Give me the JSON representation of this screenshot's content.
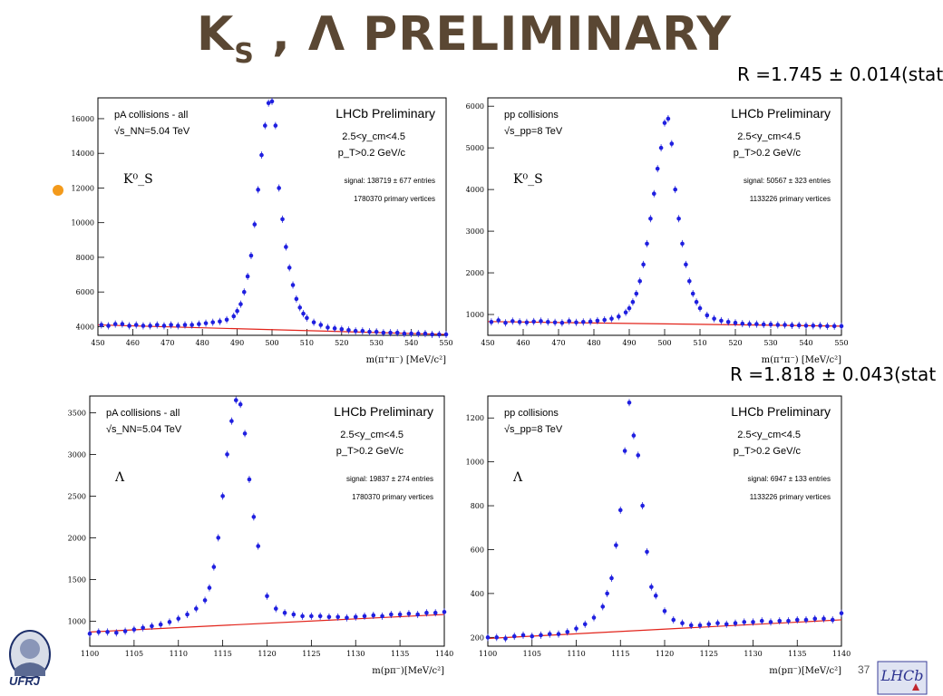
{
  "slide": {
    "title_main": "K",
    "title_sub": "S",
    "title_rest": " , Λ PRELIMINARY",
    "ratio_top": "R =1.745 ± 0.014(stat",
    "ratio_bottom": "R =1.818 ± 0.043(stat",
    "page_number": "37",
    "logo_left_text": "UFRJ",
    "logo_right_text": "LHCb"
  },
  "chart_data": [
    {
      "type": "scatter",
      "collision": "pA collisions - all",
      "energy": "√s_NN=5.04 TeV",
      "brand": "LHCb Preliminary",
      "rapidity": "2.5<y_cm<4.5",
      "pt_cut": "p_T>0.2 GeV/c",
      "signal": "signal: 138719 ± 677 entries",
      "vertices": "1780370 primary vertices",
      "particle": "K⁰_S",
      "xlabel": "m(π⁺π⁻) [MeV/c²]",
      "xlim": [
        450,
        550
      ],
      "ylim": [
        3500,
        17200
      ],
      "xticks": [
        450,
        460,
        470,
        480,
        490,
        500,
        510,
        520,
        530,
        540,
        550
      ],
      "yticks": [
        4000,
        6000,
        8000,
        10000,
        12000,
        14000,
        16000
      ],
      "fit_line": [
        [
          450,
          4100
        ],
        [
          550,
          3550
        ]
      ],
      "x": [
        451,
        453,
        455,
        457,
        459,
        461,
        463,
        465,
        467,
        469,
        471,
        473,
        475,
        477,
        479,
        481,
        483,
        485,
        487,
        489,
        490,
        491,
        492,
        493,
        494,
        495,
        496,
        497,
        498,
        499,
        500,
        501,
        502,
        503,
        504,
        505,
        506,
        507,
        508,
        509,
        510,
        512,
        514,
        516,
        518,
        520,
        522,
        524,
        526,
        528,
        530,
        532,
        534,
        536,
        538,
        540,
        542,
        544,
        546,
        548,
        550
      ],
      "y": [
        4100,
        4050,
        4150,
        4150,
        4050,
        4100,
        4050,
        4050,
        4100,
        4050,
        4100,
        4050,
        4100,
        4100,
        4150,
        4200,
        4250,
        4300,
        4400,
        4600,
        4900,
        5300,
        6000,
        6900,
        8100,
        9900,
        11900,
        13900,
        15600,
        16900,
        17000,
        15600,
        12000,
        10200,
        8600,
        7400,
        6400,
        5600,
        5100,
        4750,
        4500,
        4250,
        4100,
        3950,
        3900,
        3850,
        3800,
        3750,
        3750,
        3700,
        3700,
        3650,
        3650,
        3650,
        3600,
        3600,
        3600,
        3600,
        3550,
        3550,
        3550
      ]
    },
    {
      "type": "scatter",
      "collision": "pp collisions",
      "energy": "√s_pp=8 TeV",
      "brand": "LHCb Preliminary",
      "rapidity": "2.5<y_cm<4.5",
      "pt_cut": "p_T>0.2 GeV/c",
      "signal": "signal: 50567 ± 323 entries",
      "vertices": "1133226 primary vertices",
      "particle": "K⁰_S",
      "xlabel": "m(π⁺π⁻) [MeV/c²]",
      "xlim": [
        450,
        550
      ],
      "ylim": [
        500,
        6200
      ],
      "xticks": [
        450,
        460,
        470,
        480,
        490,
        500,
        510,
        520,
        530,
        540,
        550
      ],
      "yticks": [
        1000,
        2000,
        3000,
        4000,
        5000,
        6000
      ],
      "fit_line": [
        [
          450,
          830
        ],
        [
          550,
          720
        ]
      ],
      "x": [
        451,
        453,
        455,
        457,
        459,
        461,
        463,
        465,
        467,
        469,
        471,
        473,
        475,
        477,
        479,
        481,
        483,
        485,
        487,
        489,
        490,
        491,
        492,
        493,
        494,
        495,
        496,
        497,
        498,
        499,
        500,
        501,
        502,
        503,
        504,
        505,
        506,
        507,
        508,
        509,
        510,
        512,
        514,
        516,
        518,
        520,
        522,
        524,
        526,
        528,
        530,
        532,
        534,
        536,
        538,
        540,
        542,
        544,
        546,
        548,
        550
      ],
      "y": [
        820,
        860,
        800,
        840,
        820,
        810,
        830,
        840,
        820,
        810,
        800,
        840,
        810,
        820,
        830,
        850,
        870,
        900,
        950,
        1050,
        1150,
        1300,
        1500,
        1800,
        2200,
        2700,
        3300,
        3900,
        4500,
        5000,
        5600,
        5700,
        5100,
        4000,
        3300,
        2700,
        2200,
        1800,
        1500,
        1300,
        1150,
        980,
        900,
        850,
        820,
        800,
        780,
        770,
        770,
        760,
        760,
        750,
        750,
        740,
        740,
        730,
        730,
        730,
        720,
        720,
        720
      ]
    },
    {
      "type": "scatter",
      "collision": "pA collisions - all",
      "energy": "√s_NN=5.04 TeV",
      "brand": "LHCb Preliminary",
      "rapidity": "2.5<y_cm<4.5",
      "pt_cut": "p_T>0.2 GeV/c",
      "signal": "signal: 19837 ± 274 entries",
      "vertices": "1780370 primary vertices",
      "particle": "Λ",
      "xlabel": "m(pπ⁻)[MeV/c²]",
      "xlim": [
        1100,
        1140
      ],
      "ylim": [
        700,
        3700
      ],
      "xticks": [
        1100,
        1105,
        1110,
        1115,
        1120,
        1125,
        1130,
        1135,
        1140
      ],
      "yticks": [
        1000,
        1500,
        2000,
        2500,
        3000,
        3500
      ],
      "fit_line": [
        [
          1100,
          870
        ],
        [
          1140,
          1080
        ]
      ],
      "x": [
        1100,
        1101,
        1102,
        1103,
        1104,
        1105,
        1106,
        1107,
        1108,
        1109,
        1110,
        1111,
        1112,
        1113,
        1113.5,
        1114,
        1114.5,
        1115,
        1115.5,
        1116,
        1116.5,
        1117,
        1117.5,
        1118,
        1118.5,
        1119,
        1120,
        1121,
        1122,
        1123,
        1124,
        1125,
        1126,
        1127,
        1128,
        1129,
        1130,
        1131,
        1132,
        1133,
        1134,
        1135,
        1136,
        1137,
        1138,
        1139,
        1140
      ],
      "y": [
        850,
        870,
        870,
        860,
        880,
        900,
        920,
        940,
        960,
        990,
        1030,
        1080,
        1150,
        1250,
        1400,
        1650,
        2000,
        2500,
        3000,
        3400,
        3650,
        3600,
        3250,
        2700,
        2250,
        1900,
        1300,
        1150,
        1100,
        1080,
        1060,
        1060,
        1060,
        1050,
        1050,
        1040,
        1050,
        1060,
        1070,
        1060,
        1080,
        1080,
        1090,
        1080,
        1100,
        1100,
        1110
      ]
    },
    {
      "type": "scatter",
      "collision": "pp collisions",
      "energy": "√s_pp=8 TeV",
      "brand": "LHCb Preliminary",
      "rapidity": "2.5<y_cm<4.5",
      "pt_cut": "p_T>0.2 GeV/c",
      "signal": "signal: 6947 ± 133 entries",
      "vertices": "1133226 primary vertices",
      "particle": "Λ",
      "xlabel": "m(pπ⁻)[MeV/c²]",
      "xlim": [
        1100,
        1140
      ],
      "ylim": [
        160,
        1300
      ],
      "xticks": [
        1100,
        1105,
        1110,
        1115,
        1120,
        1125,
        1130,
        1135,
        1140
      ],
      "yticks": [
        200,
        400,
        600,
        800,
        1000,
        1200
      ],
      "fit_line": [
        [
          1100,
          195
        ],
        [
          1140,
          280
        ]
      ],
      "x": [
        1100,
        1101,
        1102,
        1103,
        1104,
        1105,
        1106,
        1107,
        1108,
        1109,
        1110,
        1111,
        1112,
        1113,
        1113.5,
        1114,
        1114.5,
        1115,
        1115.5,
        1116,
        1116.5,
        1117,
        1117.5,
        1118,
        1118.5,
        1119,
        1120,
        1121,
        1122,
        1123,
        1124,
        1125,
        1126,
        1127,
        1128,
        1129,
        1130,
        1131,
        1132,
        1133,
        1134,
        1135,
        1136,
        1137,
        1138,
        1139,
        1140
      ],
      "y": [
        200,
        200,
        195,
        205,
        210,
        205,
        210,
        215,
        215,
        225,
        240,
        260,
        290,
        340,
        400,
        470,
        620,
        780,
        1050,
        1270,
        1120,
        1030,
        800,
        590,
        430,
        390,
        320,
        280,
        265,
        255,
        255,
        260,
        265,
        260,
        265,
        270,
        270,
        275,
        270,
        275,
        275,
        280,
        280,
        285,
        285,
        280,
        310
      ]
    }
  ]
}
